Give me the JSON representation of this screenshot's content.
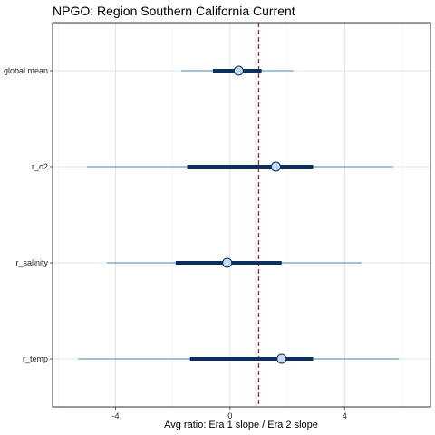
{
  "chart_data": {
    "type": "forest",
    "title": "NPGO: Region Southern California Current",
    "xlabel": "Avg ratio: Era 1 slope / Era 2 slope",
    "ylabel": "",
    "xlim": [
      -6.2,
      7.0
    ],
    "x_ticks": [
      -4,
      0,
      4
    ],
    "x_tick_labels": [
      "-4",
      "0",
      "4"
    ],
    "reference_line": {
      "x": 1.0,
      "color": "#ff0000",
      "style": "dashed"
    },
    "grid": true,
    "rows": [
      {
        "label": "global mean",
        "point": 0.3,
        "inner": [
          -0.6,
          1.1
        ],
        "outer": [
          -1.7,
          2.2
        ]
      },
      {
        "label": "r_o2",
        "point": 1.6,
        "inner": [
          -1.5,
          2.9
        ],
        "outer": [
          -5.0,
          5.7
        ]
      },
      {
        "label": "r_salinity",
        "point": -0.1,
        "inner": [
          -1.9,
          1.8
        ],
        "outer": [
          -4.3,
          4.6
        ]
      },
      {
        "label": "r_temp",
        "point": 1.8,
        "inner": [
          -1.4,
          2.9
        ],
        "outer": [
          -5.3,
          5.9
        ]
      }
    ],
    "colors": {
      "inner_interval": "#0b3060",
      "outer_interval": "#4a80b0",
      "point_fill": "#c5d9ee",
      "point_stroke": "#0b3060"
    }
  }
}
